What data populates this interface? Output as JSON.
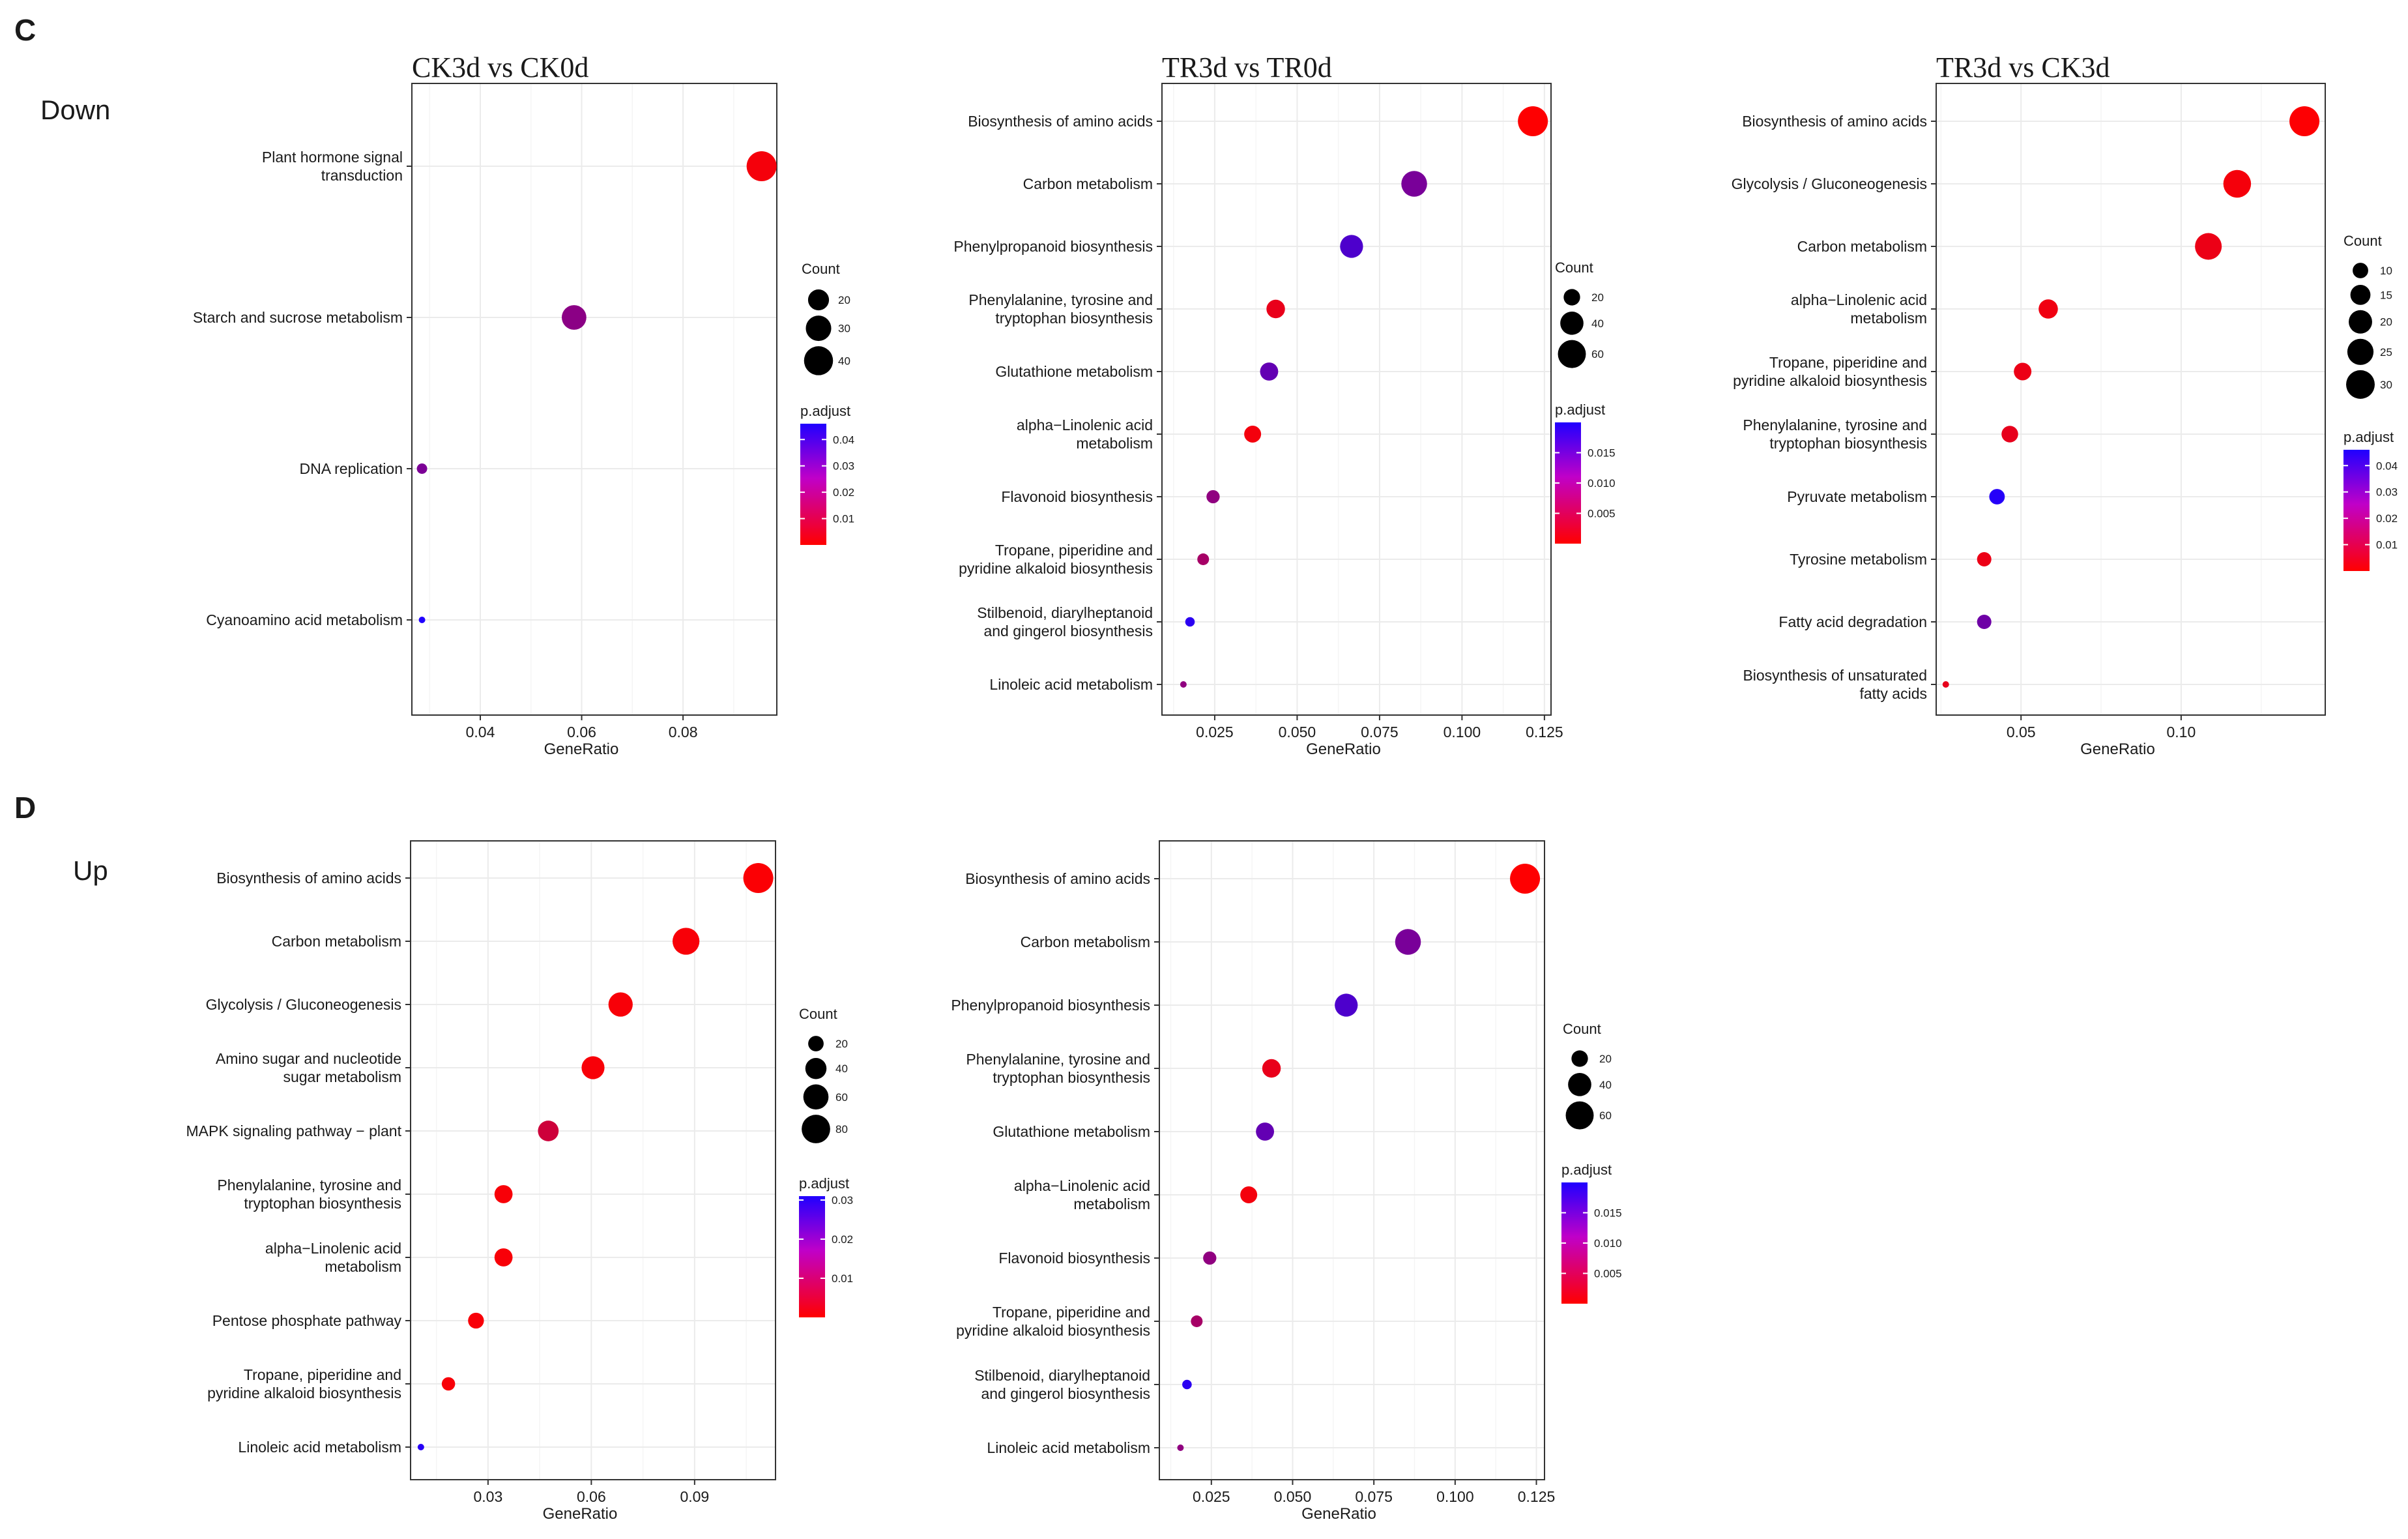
{
  "labels": {
    "panel_c": "C",
    "panel_d": "D",
    "down": "Down",
    "up": "Up"
  },
  "colors": {
    "low_padj": "#ff0000",
    "high_padj": "#2000ff"
  },
  "chart_data": [
    {
      "id": "c1",
      "type": "scatter",
      "panel": "C",
      "direction": "Down",
      "title": "CK3d vs CK0d",
      "xlabel": "GeneRatio",
      "ylabel": "",
      "xlim": [
        0.0265,
        0.0985
      ],
      "xticks": [
        0.04,
        0.06,
        0.08
      ],
      "xtick_labels": [
        "0.04",
        "0.06",
        "0.08"
      ],
      "categories": [
        "Plant hormone signal transduction",
        "Starch and sucrose metabolism",
        "DNA replication",
        "Cyanoamino acid metabolism"
      ],
      "category_lines": [
        [
          "Plant hormone signal",
          "transduction"
        ],
        [
          "Starch and sucrose metabolism"
        ],
        [
          "DNA replication"
        ],
        [
          "Cyanoamino acid metabolism"
        ]
      ],
      "x": [
        0.0955,
        0.0585,
        0.0285,
        0.0285
      ],
      "count": [
        43,
        28,
        7,
        6
      ],
      "p_adjust": [
        0.002,
        0.024,
        0.027,
        0.047
      ],
      "size_legend": {
        "title": "Count",
        "values": [
          20,
          30,
          40
        ],
        "labels": [
          "20",
          "30",
          "40"
        ]
      },
      "color_legend": {
        "title": "p.adjust",
        "min": 0.0,
        "max": 0.046,
        "ticks": [
          0.04,
          0.03,
          0.02,
          0.01
        ],
        "labels": [
          "0.04",
          "0.03",
          "0.02",
          "0.01"
        ]
      }
    },
    {
      "id": "c2",
      "type": "scatter",
      "panel": "C",
      "direction": "Down",
      "title": "TR3d vs TR0d",
      "xlabel": "GeneRatio",
      "ylabel": "",
      "xlim": [
        0.009,
        0.127
      ],
      "xticks": [
        0.025,
        0.05,
        0.075,
        0.1,
        0.125
      ],
      "xtick_labels": [
        "0.025",
        "0.050",
        "0.075",
        "0.100",
        "0.125"
      ],
      "categories": [
        "Biosynthesis of amino acids",
        "Carbon metabolism",
        "Phenylpropanoid biosynthesis",
        "Phenylalanine, tyrosine and tryptophan biosynthesis",
        "Glutathione metabolism",
        "alpha-Linolenic acid metabolism",
        "Flavonoid biosynthesis",
        "Tropane, piperidine and pyridine alkaloid biosynthesis",
        "Stilbenoid, diarylheptanoid and gingerol biosynthesis",
        "Linoleic acid metabolism"
      ],
      "category_lines": [
        [
          "Biosynthesis of amino acids"
        ],
        [
          "Carbon metabolism"
        ],
        [
          "Phenylpropanoid biosynthesis"
        ],
        [
          "Phenylalanine, tyrosine and",
          "tryptophan biosynthesis"
        ],
        [
          "Glutathione metabolism"
        ],
        [
          "alpha−Linolenic acid",
          "metabolism"
        ],
        [
          "Flavonoid biosynthesis"
        ],
        [
          "Tropane, piperidine and",
          "pyridine alkaloid biosynthesis"
        ],
        [
          "Stilbenoid, diarylheptanoid",
          "and gingerol biosynthesis"
        ],
        [
          "Linoleic acid metabolism"
        ]
      ],
      "x": [
        0.1215,
        0.0855,
        0.0665,
        0.0435,
        0.0415,
        0.0365,
        0.0245,
        0.0215,
        0.0175,
        0.0155
      ],
      "count": [
        70,
        50,
        39,
        25,
        24,
        21,
        14,
        12,
        10,
        9
      ],
      "p_adjust": [
        0.0001,
        0.012,
        0.016,
        0.002,
        0.014,
        0.001,
        0.01,
        0.008,
        0.019,
        0.01
      ],
      "size_legend": {
        "title": "Count",
        "values": [
          20,
          40,
          60
        ],
        "labels": [
          "20",
          "40",
          "60"
        ]
      },
      "color_legend": {
        "title": "p.adjust",
        "min": 0.0,
        "max": 0.02,
        "ticks": [
          0.015,
          0.01,
          0.005
        ],
        "labels": [
          "0.015",
          "0.010",
          "0.005"
        ]
      }
    },
    {
      "id": "c3",
      "type": "scatter",
      "panel": "C",
      "direction": "Down",
      "title": "TR3d vs CK3d",
      "xlabel": "GeneRatio",
      "ylabel": "",
      "xlim": [
        0.0235,
        0.145
      ],
      "xticks": [
        0.05,
        0.1
      ],
      "xtick_labels": [
        "0.05",
        "0.10"
      ],
      "categories": [
        "Biosynthesis of amino acids",
        "Glycolysis / Gluconeogenesis",
        "Carbon metabolism",
        "alpha-Linolenic acid metabolism",
        "Tropane, piperidine and pyridine alkaloid biosynthesis",
        "Phenylalanine, tyrosine and tryptophan biosynthesis",
        "Pyruvate metabolism",
        "Tyrosine metabolism",
        "Fatty acid degradation",
        "Biosynthesis of unsaturated fatty acids"
      ],
      "category_lines": [
        [
          "Biosynthesis of amino acids"
        ],
        [
          "Glycolysis / Gluconeogenesis"
        ],
        [
          "Carbon metabolism"
        ],
        [
          "alpha−Linolenic acid",
          "metabolism"
        ],
        [
          "Tropane, piperidine and",
          "pyridine alkaloid biosynthesis"
        ],
        [
          "Phenylalanine, tyrosine and",
          "tryptophan biosynthesis"
        ],
        [
          "Pyruvate metabolism"
        ],
        [
          "Tyrosine metabolism"
        ],
        [
          "Fatty acid degradation"
        ],
        [
          "Biosynthesis of unsaturated",
          "fatty acids"
        ]
      ],
      "x": [
        0.1385,
        0.1175,
        0.1085,
        0.0585,
        0.0505,
        0.0465,
        0.0425,
        0.0385,
        0.0385,
        0.0265
      ],
      "count": [
        33,
        28,
        26,
        14,
        12,
        11,
        10,
        9,
        9,
        6
      ],
      "p_adjust": [
        0.0005,
        0.002,
        0.004,
        0.003,
        0.004,
        0.005,
        0.045,
        0.004,
        0.03,
        0.005
      ],
      "size_legend": {
        "title": "Count",
        "values": [
          10,
          15,
          20,
          25,
          30
        ],
        "labels": [
          "10",
          "15",
          "20",
          "25",
          "30"
        ]
      },
      "color_legend": {
        "title": "p.adjust",
        "min": 0.0,
        "max": 0.046,
        "ticks": [
          0.04,
          0.03,
          0.02,
          0.01
        ],
        "labels": [
          "0.04",
          "0.03",
          "0.02",
          "0.01"
        ]
      }
    },
    {
      "id": "d1",
      "type": "scatter",
      "panel": "D",
      "direction": "Up",
      "title": "",
      "xlabel": "GeneRatio",
      "ylabel": "",
      "xlim": [
        0.0075,
        0.1135
      ],
      "xticks": [
        0.03,
        0.06,
        0.09
      ],
      "xtick_labels": [
        "0.03",
        "0.06",
        "0.09"
      ],
      "categories": [
        "Biosynthesis of amino acids",
        "Carbon metabolism",
        "Glycolysis / Gluconeogenesis",
        "Amino sugar and nucleotide sugar metabolism",
        "MAPK signaling pathway - plant",
        "Phenylalanine, tyrosine and tryptophan biosynthesis",
        "alpha-Linolenic acid metabolism",
        "Pentose phosphate pathway",
        "Tropane, piperidine and pyridine alkaloid biosynthesis",
        "Linoleic acid metabolism"
      ],
      "category_lines": [
        [
          "Biosynthesis of amino acids"
        ],
        [
          "Carbon metabolism"
        ],
        [
          "Glycolysis / Gluconeogenesis"
        ],
        [
          "Amino sugar and nucleotide",
          "sugar metabolism"
        ],
        [
          "MAPK signaling pathway − plant"
        ],
        [
          "Phenylalanine, tyrosine and",
          "tryptophan biosynthesis"
        ],
        [
          "alpha−Linolenic acid",
          "metabolism"
        ],
        [
          "Pentose phosphate pathway"
        ],
        [
          "Tropane, piperidine and",
          "pyridine alkaloid biosynthesis"
        ],
        [
          "Linoleic acid metabolism"
        ]
      ],
      "x": [
        0.1085,
        0.0875,
        0.0685,
        0.0605,
        0.0475,
        0.0345,
        0.0345,
        0.0265,
        0.0185,
        0.0105
      ],
      "count": [
        90,
        70,
        55,
        48,
        38,
        28,
        28,
        21,
        15,
        8
      ],
      "p_adjust": [
        0.0005,
        0.001,
        0.001,
        0.001,
        0.007,
        0.001,
        0.001,
        0.001,
        0.001,
        0.03
      ],
      "size_legend": {
        "title": "Count",
        "values": [
          20,
          40,
          60,
          80
        ],
        "labels": [
          "20",
          "40",
          "60",
          "80"
        ]
      },
      "color_legend": {
        "title": "p.adjust",
        "min": 0.0,
        "max": 0.031,
        "ticks": [
          0.03,
          0.02,
          0.01
        ],
        "labels": [
          "0.03",
          "0.02",
          "0.01"
        ]
      }
    },
    {
      "id": "d2",
      "type": "scatter",
      "panel": "D",
      "direction": "Up",
      "title": "",
      "xlabel": "GeneRatio",
      "ylabel": "",
      "xlim": [
        0.009,
        0.1275
      ],
      "xticks": [
        0.025,
        0.05,
        0.075,
        0.1,
        0.125
      ],
      "xtick_labels": [
        "0.025",
        "0.050",
        "0.075",
        "0.100",
        "0.125"
      ],
      "categories": [
        "Biosynthesis of amino acids",
        "Carbon metabolism",
        "Phenylpropanoid biosynthesis",
        "Phenylalanine, tyrosine and tryptophan biosynthesis",
        "Glutathione metabolism",
        "alpha-Linolenic acid metabolism",
        "Flavonoid biosynthesis",
        "Tropane, piperidine and pyridine alkaloid biosynthesis",
        "Stilbenoid, diarylheptanoid and gingerol biosynthesis",
        "Linoleic acid metabolism"
      ],
      "category_lines": [
        [
          "Biosynthesis of amino acids"
        ],
        [
          "Carbon metabolism"
        ],
        [
          "Phenylpropanoid biosynthesis"
        ],
        [
          "Phenylalanine, tyrosine and",
          "tryptophan biosynthesis"
        ],
        [
          "Glutathione metabolism"
        ],
        [
          "alpha−Linolenic acid",
          "metabolism"
        ],
        [
          "Flavonoid biosynthesis"
        ],
        [
          "Tropane, piperidine and",
          "pyridine alkaloid biosynthesis"
        ],
        [
          "Stilbenoid, diarylheptanoid",
          "and gingerol biosynthesis"
        ],
        [
          "Linoleic acid metabolism"
        ]
      ],
      "x": [
        0.1215,
        0.0855,
        0.0665,
        0.0435,
        0.0415,
        0.0365,
        0.0245,
        0.0205,
        0.0175,
        0.0155
      ],
      "count": [
        70,
        50,
        39,
        25,
        24,
        21,
        14,
        12,
        10,
        9
      ],
      "p_adjust": [
        0.0001,
        0.012,
        0.016,
        0.002,
        0.014,
        0.001,
        0.01,
        0.008,
        0.019,
        0.01
      ],
      "size_legend": {
        "title": "Count",
        "values": [
          20,
          40,
          60
        ],
        "labels": [
          "20",
          "40",
          "60"
        ]
      },
      "color_legend": {
        "title": "p.adjust",
        "min": 0.0,
        "max": 0.02,
        "ticks": [
          0.015,
          0.01,
          0.005
        ],
        "labels": [
          "0.015",
          "0.010",
          "0.005"
        ]
      }
    }
  ]
}
